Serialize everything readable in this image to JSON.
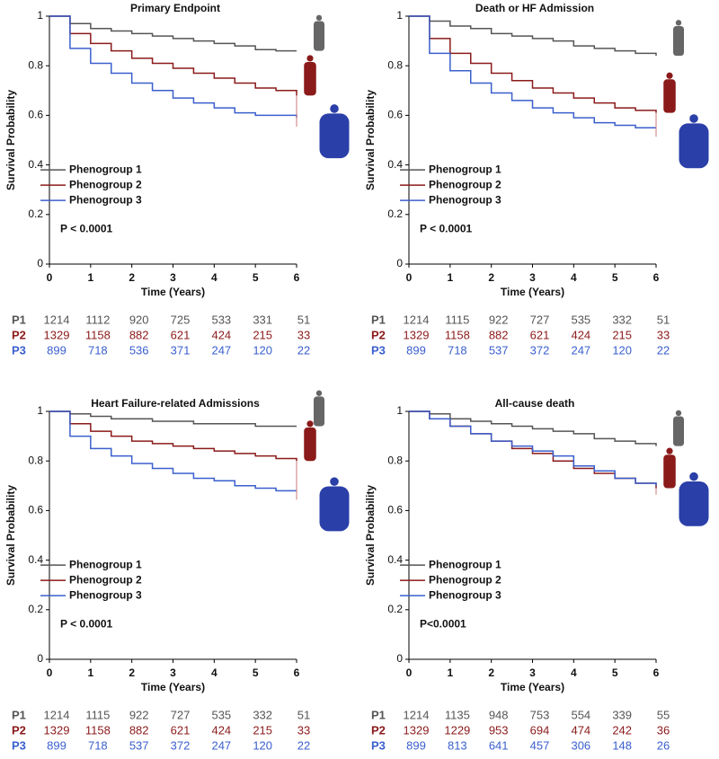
{
  "chart_data": [
    {
      "type": "line",
      "title": "Primary Endpoint",
      "xlabel": "Time (Years)",
      "ylabel": "Survival Probability",
      "x": [
        0,
        0.5,
        1,
        1.5,
        2,
        2.5,
        3,
        3.5,
        4,
        4.5,
        5,
        5.5,
        6
      ],
      "series": [
        {
          "name": "Phenogroup 1",
          "color": "#555555",
          "values": [
            1,
            0.97,
            0.95,
            0.94,
            0.93,
            0.92,
            0.91,
            0.9,
            0.89,
            0.88,
            0.865,
            0.86,
            0.86
          ]
        },
        {
          "name": "Phenogroup 2",
          "color": "#8b1a1a",
          "values": [
            1,
            0.93,
            0.89,
            0.86,
            0.83,
            0.81,
            0.79,
            0.77,
            0.75,
            0.73,
            0.71,
            0.7,
            0.68
          ]
        },
        {
          "name": "Phenogroup 3",
          "color": "#3a5fcd",
          "values": [
            1,
            0.87,
            0.81,
            0.77,
            0.73,
            0.7,
            0.67,
            0.65,
            0.63,
            0.61,
            0.6,
            0.6,
            0.59
          ]
        }
      ],
      "xlim": [
        0,
        6
      ],
      "ylim": [
        0,
        1
      ],
      "xticks": [
        0,
        1,
        2,
        3,
        4,
        5,
        6
      ],
      "yticks": [
        0,
        0.2,
        0.4,
        0.6,
        0.8,
        1
      ],
      "legend": "left",
      "annotation": "P < 0.0001",
      "risk_table": {
        "rows": [
          "P1",
          "P2",
          "P3"
        ],
        "counts": [
          [
            1214,
            1112,
            920,
            725,
            533,
            331,
            51
          ],
          [
            1329,
            1158,
            882,
            621,
            424,
            215,
            33
          ],
          [
            899,
            718,
            536,
            371,
            247,
            120,
            22
          ]
        ]
      }
    },
    {
      "type": "line",
      "title": "Death or HF Admission",
      "xlabel": "Time (Years)",
      "ylabel": "Survival Probability",
      "x": [
        0,
        0.5,
        1,
        1.5,
        2,
        2.5,
        3,
        3.5,
        4,
        4.5,
        5,
        5.5,
        6
      ],
      "series": [
        {
          "name": "Phenogroup 1",
          "color": "#555555",
          "values": [
            1,
            0.98,
            0.96,
            0.95,
            0.93,
            0.92,
            0.91,
            0.9,
            0.88,
            0.87,
            0.86,
            0.85,
            0.84
          ]
        },
        {
          "name": "Phenogroup 2",
          "color": "#8b1a1a",
          "values": [
            1,
            0.91,
            0.85,
            0.81,
            0.77,
            0.74,
            0.71,
            0.69,
            0.67,
            0.65,
            0.63,
            0.62,
            0.61
          ]
        },
        {
          "name": "Phenogroup 3",
          "color": "#3a5fcd",
          "values": [
            1,
            0.85,
            0.78,
            0.73,
            0.69,
            0.66,
            0.63,
            0.61,
            0.59,
            0.57,
            0.56,
            0.55,
            0.55
          ]
        }
      ],
      "xlim": [
        0,
        6
      ],
      "ylim": [
        0,
        1
      ],
      "xticks": [
        0,
        1,
        2,
        3,
        4,
        5,
        6
      ],
      "yticks": [
        0,
        0.2,
        0.4,
        0.6,
        0.8,
        1
      ],
      "legend": "left",
      "annotation": "P < 0.0001",
      "risk_table": {
        "rows": [
          "P1",
          "P2",
          "P3"
        ],
        "counts": [
          [
            1214,
            1115,
            922,
            727,
            535,
            332,
            51
          ],
          [
            1329,
            1158,
            882,
            621,
            424,
            215,
            33
          ],
          [
            899,
            718,
            537,
            372,
            247,
            120,
            22
          ]
        ]
      }
    },
    {
      "type": "line",
      "title": "Heart Failure-related Admissions",
      "xlabel": "Time (Years)",
      "ylabel": "Survival Probability",
      "x": [
        0,
        0.5,
        1,
        1.5,
        2,
        2.5,
        3,
        3.5,
        4,
        4.5,
        5,
        5.5,
        6
      ],
      "series": [
        {
          "name": "Phenogroup 1",
          "color": "#555555",
          "values": [
            1,
            0.99,
            0.98,
            0.97,
            0.97,
            0.96,
            0.96,
            0.95,
            0.95,
            0.95,
            0.94,
            0.94,
            0.94
          ]
        },
        {
          "name": "Phenogroup 2",
          "color": "#8b1a1a",
          "values": [
            1,
            0.95,
            0.92,
            0.9,
            0.88,
            0.87,
            0.86,
            0.85,
            0.84,
            0.83,
            0.82,
            0.81,
            0.8
          ]
        },
        {
          "name": "Phenogroup 3",
          "color": "#3a5fcd",
          "values": [
            1,
            0.9,
            0.85,
            0.82,
            0.79,
            0.77,
            0.75,
            0.73,
            0.72,
            0.7,
            0.69,
            0.68,
            0.68
          ]
        }
      ],
      "xlim": [
        0,
        6
      ],
      "ylim": [
        0,
        1
      ],
      "xticks": [
        0,
        1,
        2,
        3,
        4,
        5,
        6
      ],
      "yticks": [
        0,
        0.2,
        0.4,
        0.6,
        0.8,
        1
      ],
      "legend": "left",
      "annotation": "P < 0.0001",
      "risk_table": {
        "rows": [
          "P1",
          "P2",
          "P3"
        ],
        "counts": [
          [
            1214,
            1115,
            922,
            727,
            535,
            332,
            51
          ],
          [
            1329,
            1158,
            882,
            621,
            424,
            215,
            33
          ],
          [
            899,
            718,
            537,
            372,
            247,
            120,
            22
          ]
        ]
      }
    },
    {
      "type": "line",
      "title": "All-cause death",
      "xlabel": "Time (Years)",
      "ylabel": "Survival Probability",
      "x": [
        0,
        0.5,
        1,
        1.5,
        2,
        2.5,
        3,
        3.5,
        4,
        4.5,
        5,
        5.5,
        6
      ],
      "series": [
        {
          "name": "Phenogroup 1",
          "color": "#555555",
          "values": [
            1,
            0.99,
            0.97,
            0.96,
            0.95,
            0.94,
            0.93,
            0.92,
            0.91,
            0.89,
            0.88,
            0.87,
            0.86
          ]
        },
        {
          "name": "Phenogroup 2",
          "color": "#8b1a1a",
          "values": [
            1,
            0.97,
            0.94,
            0.91,
            0.88,
            0.85,
            0.83,
            0.8,
            0.77,
            0.75,
            0.73,
            0.71,
            0.69
          ]
        },
        {
          "name": "Phenogroup 3",
          "color": "#3a5fcd",
          "values": [
            1,
            0.97,
            0.94,
            0.91,
            0.88,
            0.86,
            0.84,
            0.82,
            0.78,
            0.76,
            0.73,
            0.71,
            0.7
          ]
        }
      ],
      "xlim": [
        0,
        6
      ],
      "ylim": [
        0,
        1
      ],
      "xticks": [
        0,
        1,
        2,
        3,
        4,
        5,
        6
      ],
      "yticks": [
        0,
        0.2,
        0.4,
        0.6,
        0.8,
        1
      ],
      "legend": "left",
      "annotation": "P<0.0001",
      "risk_table": {
        "rows": [
          "P1",
          "P2",
          "P3"
        ],
        "counts": [
          [
            1214,
            1135,
            948,
            753,
            554,
            339,
            55
          ],
          [
            1329,
            1229,
            953,
            694,
            474,
            242,
            36
          ],
          [
            899,
            813,
            641,
            457,
            306,
            148,
            26
          ]
        ]
      }
    }
  ]
}
